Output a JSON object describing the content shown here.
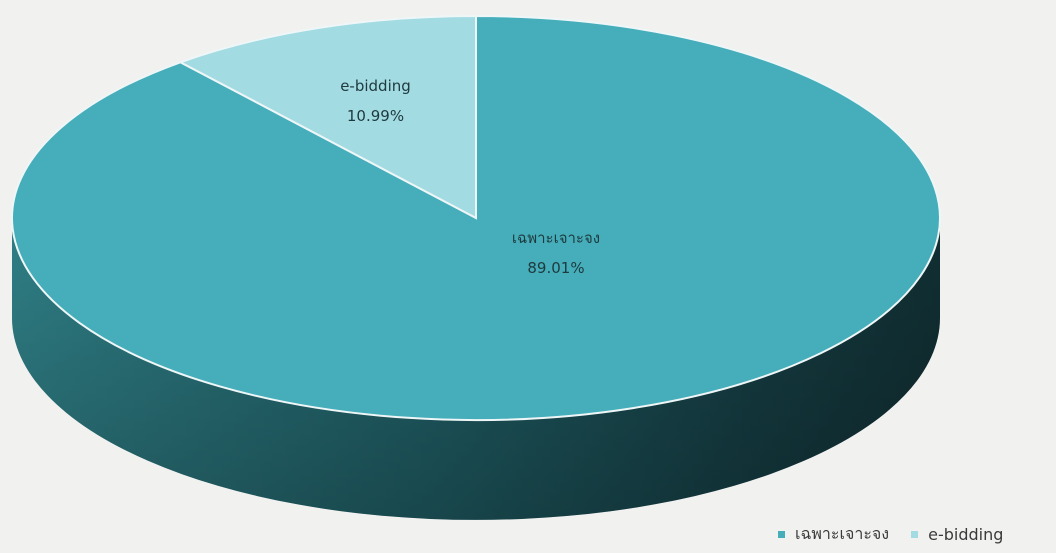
{
  "chart_data": {
    "type": "pie",
    "style": "3d",
    "slices": [
      {
        "label": "เฉพาะเจาะจง",
        "value": 89.01,
        "value_label": "89.01%",
        "color": "#45aeba"
      },
      {
        "label": "e-bidding",
        "value": 10.99,
        "value_label": "10.99%",
        "color": "#a3dbe3"
      }
    ],
    "legend": {
      "position": "bottom-right",
      "items": [
        "เฉพาะเจาะจง",
        "e-bidding"
      ]
    }
  }
}
